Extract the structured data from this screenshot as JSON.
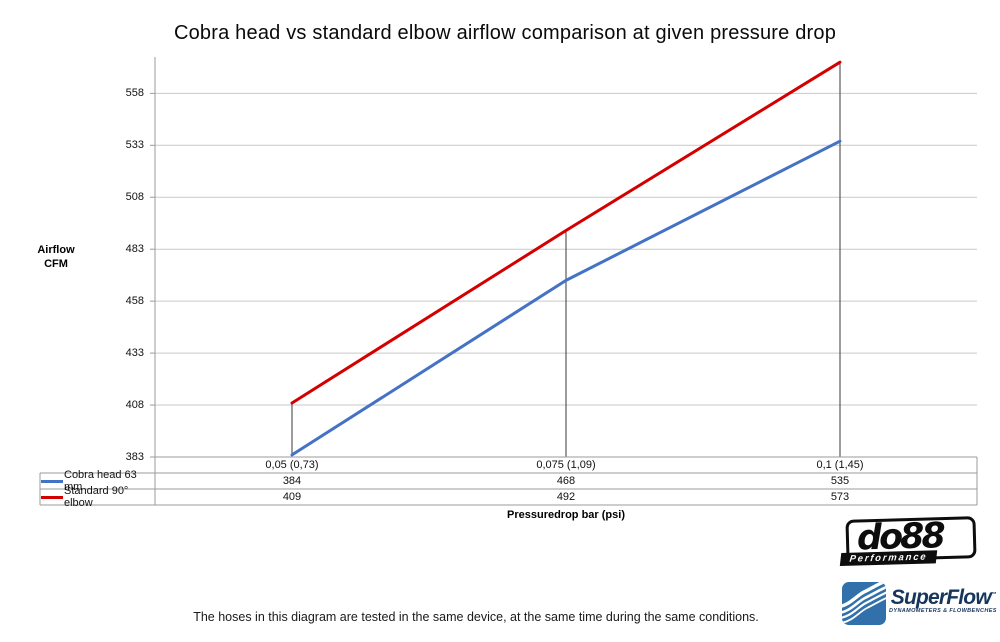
{
  "title": "Cobra head vs standard elbow airflow comparison at given pressure drop",
  "chart_data": {
    "type": "line",
    "categories": [
      "0,05 (0,73)",
      "0,075 (1,09)",
      "0,1 (1,45)"
    ],
    "series": [
      {
        "name": "Cobra head 63 mm",
        "color": "#4472C4",
        "values": [
          384,
          468,
          535
        ]
      },
      {
        "name": "Standard 90° elbow",
        "color": "#D40000",
        "values": [
          409,
          492,
          573
        ]
      }
    ],
    "yticks": [
      383,
      408,
      433,
      458,
      483,
      508,
      533,
      558
    ],
    "ylim": [
      383,
      575.5
    ],
    "ylabel_lines": [
      "Airflow",
      "CFM"
    ],
    "xlabel": "Pressuredrop bar (psi)",
    "grid": true,
    "drop_lines": true,
    "legend_position": "table-left"
  },
  "table": {
    "note": "legend table below chart: row per series, value per category"
  },
  "footer": {
    "caption": "The hoses in this diagram are tested in the same device, at the same time during the same conditions."
  },
  "logos": {
    "do88": {
      "text": "do88",
      "subtext": "Performance"
    },
    "superflow": {
      "text": "SuperFlow",
      "tm": "™",
      "subtext": "DYNAMOMETERS & FLOWBENCHES"
    }
  },
  "colors": {
    "series_blue": "#4472C4",
    "series_red": "#D40000",
    "gridline": "#c9c9c9",
    "axis_border": "#9b9b9b",
    "drop_line": "#3a3a3a",
    "do88_black": "#0d0d0d",
    "superflow_blue": "#3270ab",
    "superflow_navy": "#16365c"
  }
}
